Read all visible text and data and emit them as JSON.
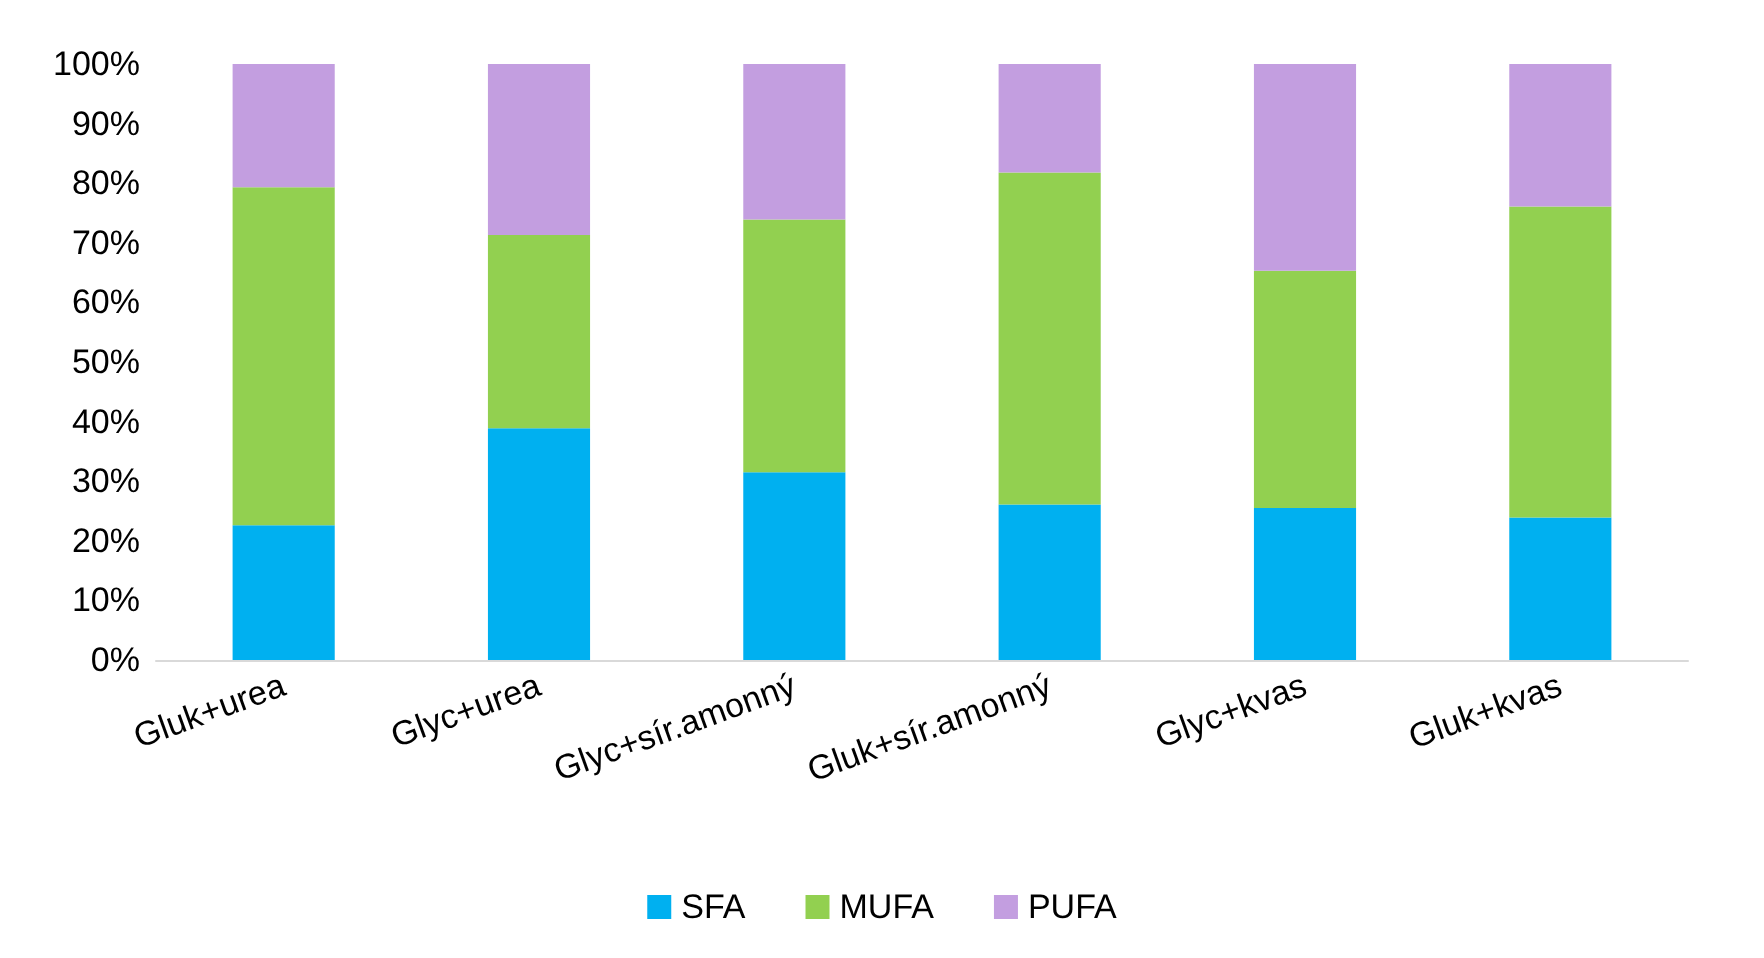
{
  "chart_data": {
    "type": "bar",
    "stacked": true,
    "categories": [
      "Gluk+urea",
      "Glyc+urea",
      "Glyc+sír.amonný",
      "Gluk+sír.amonný",
      "Glyc+kvas",
      "Gluk+kvas"
    ],
    "series": [
      {
        "name": "SFA",
        "color": "#00b0f0",
        "values": [
          22.6,
          38.9,
          31.5,
          26.1,
          25.5,
          23.9
        ]
      },
      {
        "name": "MUFA",
        "color": "#92d050",
        "values": [
          56.7,
          32.4,
          42.4,
          55.7,
          39.8,
          52.2
        ]
      },
      {
        "name": "PUFA",
        "color": "#c39ee0",
        "values": [
          20.7,
          28.7,
          26.1,
          18.2,
          34.7,
          23.9
        ]
      }
    ],
    "ylim": [
      0,
      100
    ],
    "yticks": [
      {
        "value": 0,
        "label": "0%"
      },
      {
        "value": 10,
        "label": "10%"
      },
      {
        "value": 20,
        "label": "20%"
      },
      {
        "value": 30,
        "label": "30%"
      },
      {
        "value": 40,
        "label": "40%"
      },
      {
        "value": 50,
        "label": "50%"
      },
      {
        "value": 60,
        "label": "60%"
      },
      {
        "value": 70,
        "label": "70%"
      },
      {
        "value": 80,
        "label": "80%"
      },
      {
        "value": 90,
        "label": "90%"
      },
      {
        "value": 100,
        "label": "100%"
      }
    ],
    "grid": false,
    "legend": "bottom"
  }
}
